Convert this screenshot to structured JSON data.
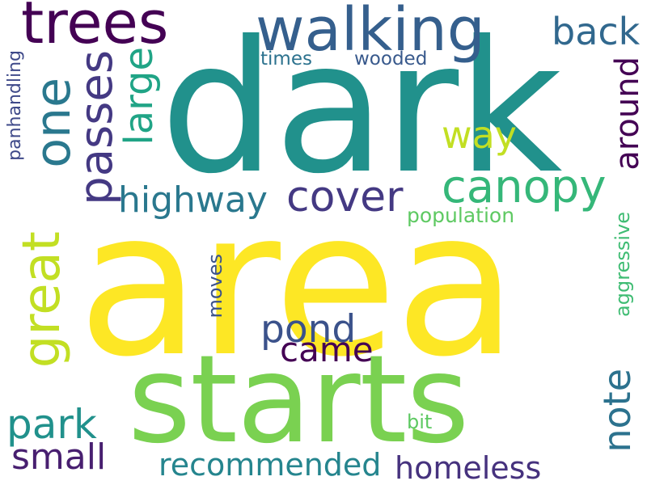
{
  "words": {
    "dark": {
      "text": "dark",
      "color": "#21918c",
      "orientation": "horizontal"
    },
    "area": {
      "text": "area",
      "color": "#fde725",
      "orientation": "horizontal"
    },
    "starts": {
      "text": "starts",
      "color": "#7ad151",
      "orientation": "horizontal"
    },
    "walking": {
      "text": "walking",
      "color": "#355f8d",
      "orientation": "horizontal"
    },
    "trees": {
      "text": "trees",
      "color": "#440154",
      "orientation": "horizontal"
    },
    "back": {
      "text": "back",
      "color": "#31688e",
      "orientation": "horizontal"
    },
    "times": {
      "text": "times",
      "color": "#2c728e",
      "orientation": "horizontal"
    },
    "wooded": {
      "text": "wooded",
      "color": "#38598c",
      "orientation": "horizontal"
    },
    "way": {
      "text": "way",
      "color": "#c2df23",
      "orientation": "horizontal"
    },
    "canopy": {
      "text": "canopy",
      "color": "#35b779",
      "orientation": "horizontal"
    },
    "cover": {
      "text": "cover",
      "color": "#443983",
      "orientation": "horizontal"
    },
    "highway": {
      "text": "highway",
      "color": "#2a788e",
      "orientation": "horizontal"
    },
    "population": {
      "text": "population",
      "color": "#5ec962",
      "orientation": "horizontal"
    },
    "pond": {
      "text": "pond",
      "color": "#3b528b",
      "orientation": "horizontal"
    },
    "came": {
      "text": "came",
      "color": "#440154",
      "orientation": "horizontal"
    },
    "park": {
      "text": "park",
      "color": "#21918c",
      "orientation": "horizontal"
    },
    "small": {
      "text": "small",
      "color": "#481f70",
      "orientation": "horizontal"
    },
    "recommended": {
      "text": "recommended",
      "color": "#25858e",
      "orientation": "horizontal"
    },
    "homeless": {
      "text": "homeless",
      "color": "#46327e",
      "orientation": "horizontal"
    },
    "bit": {
      "text": "bit",
      "color": "#5ec962",
      "orientation": "horizontal"
    },
    "one": {
      "text": "one",
      "color": "#2a788e",
      "orientation": "vertical"
    },
    "passes": {
      "text": "passes",
      "color": "#443983",
      "orientation": "vertical"
    },
    "large": {
      "text": "large",
      "color": "#20a486",
      "orientation": "vertical"
    },
    "great": {
      "text": "great",
      "color": "#c2df23",
      "orientation": "vertical"
    },
    "panhandling": {
      "text": "panhandling",
      "color": "#3e4989",
      "orientation": "vertical"
    },
    "around": {
      "text": "around",
      "color": "#440154",
      "orientation": "vertical"
    },
    "aggressive": {
      "text": "aggressive",
      "color": "#3fbc73",
      "orientation": "vertical"
    },
    "note": {
      "text": "note",
      "color": "#2c728e",
      "orientation": "vertical"
    },
    "moves": {
      "text": "moves",
      "color": "#3b528b",
      "orientation": "vertical"
    }
  },
  "background": "#ffffff"
}
